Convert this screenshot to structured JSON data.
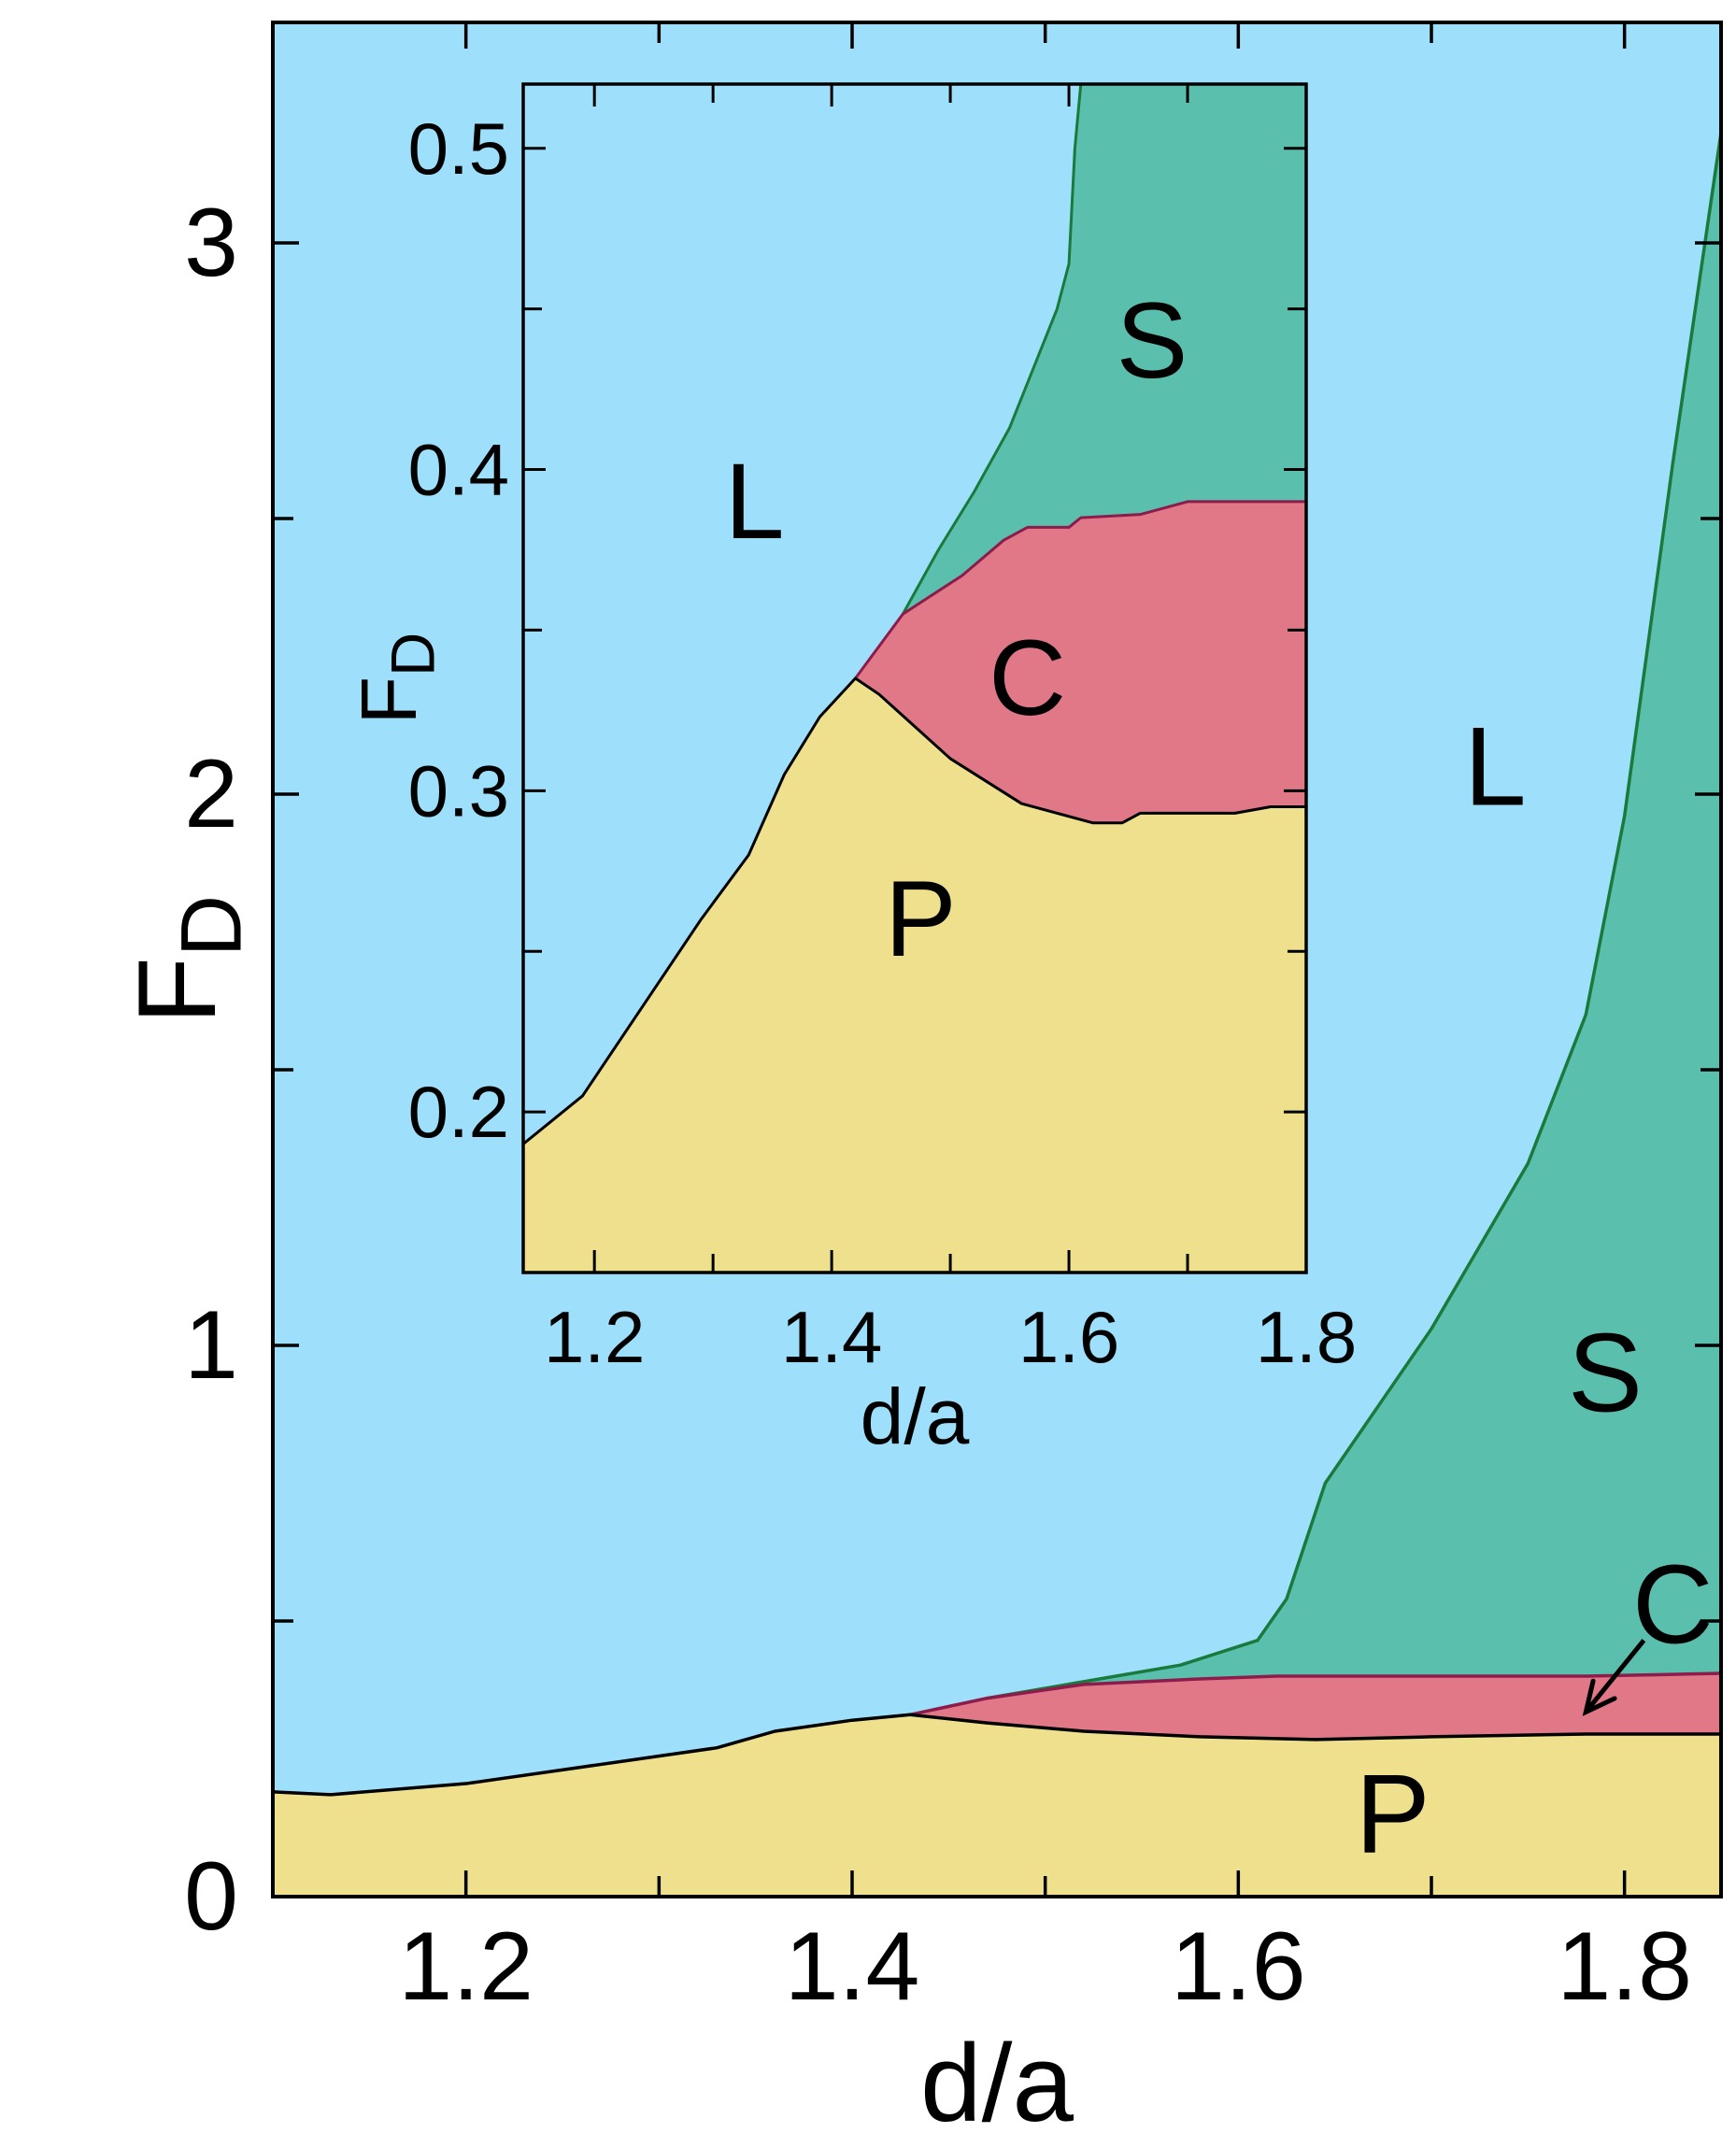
{
  "chart_data": [
    {
      "type": "area",
      "panel": "main",
      "xlabel": "d/a",
      "ylabel": "F",
      "ylabel_subscript": "D",
      "xlim": [
        1.1,
        1.85
      ],
      "ylim": [
        0,
        3.4
      ],
      "x_ticks": [
        1.2,
        1.4,
        1.6,
        1.8
      ],
      "x_tick_labels": [
        "1.2",
        "1.4",
        "1.6",
        "1.8"
      ],
      "x_minor_ticks": [
        1.1,
        1.3,
        1.5,
        1.7
      ],
      "y_ticks": [
        0,
        1,
        2,
        3
      ],
      "y_tick_labels": [
        "0",
        "1",
        "2",
        "3"
      ],
      "y_minor_ticks": [
        0.5,
        1.5,
        2.5
      ],
      "grid": false,
      "colors": {
        "L": "#9ee0fc",
        "S": "#5bbfae",
        "C": "#e07888",
        "P": "#eee08d"
      },
      "boundaries": {
        "P_upper": {
          "x": [
            1.1,
            1.13,
            1.2,
            1.26,
            1.33,
            1.36,
            1.4,
            1.43,
            1.47,
            1.52,
            1.58,
            1.64,
            1.7,
            1.78,
            1.85
          ],
          "y": [
            0.19,
            0.185,
            0.205,
            0.235,
            0.27,
            0.3,
            0.32,
            0.33,
            0.315,
            0.3,
            0.29,
            0.285,
            0.29,
            0.295,
            0.295
          ]
        },
        "C_upper": {
          "x": [
            1.43,
            1.47,
            1.52,
            1.58,
            1.62,
            1.7,
            1.78,
            1.85
          ],
          "y": [
            0.33,
            0.36,
            0.385,
            0.395,
            0.4,
            0.4,
            0.4,
            0.405
          ]
        },
        "S_upper": {
          "x": [
            1.47,
            1.52,
            1.57,
            1.61,
            1.625,
            1.645,
            1.7,
            1.75,
            1.78,
            1.8,
            1.825,
            1.85
          ],
          "y": [
            0.36,
            0.39,
            0.42,
            0.465,
            0.54,
            0.75,
            1.03,
            1.33,
            1.6,
            1.96,
            2.6,
            3.2
          ]
        }
      },
      "region_labels": [
        {
          "text": "L",
          "x": 1.733,
          "y": 2.05
        },
        {
          "text": "S",
          "x": 1.79,
          "y": 0.95
        },
        {
          "text": "C",
          "x": 1.825,
          "y": 0.53
        },
        {
          "text": "P",
          "x": 1.68,
          "y": 0.15
        }
      ],
      "annotations": [
        {
          "text": "C",
          "arrow_from": [
            1.81,
            0.465
          ],
          "arrow_to": [
            1.78,
            0.335
          ]
        }
      ]
    },
    {
      "type": "area",
      "panel": "inset",
      "xlabel": "d/a",
      "ylabel": "F",
      "ylabel_subscript": "D",
      "xlim": [
        1.14,
        1.8
      ],
      "ylim": [
        0.15,
        0.52
      ],
      "x_ticks": [
        1.2,
        1.4,
        1.6,
        1.8
      ],
      "x_tick_labels": [
        "1.2",
        "1.4",
        "1.6",
        "1.8"
      ],
      "x_minor_ticks": [
        1.3,
        1.5,
        1.7
      ],
      "y_ticks": [
        0.2,
        0.3,
        0.4,
        0.5
      ],
      "y_tick_labels": [
        "0.2",
        "0.3",
        "0.4",
        "0.5"
      ],
      "y_minor_ticks": [
        0.25,
        0.35,
        0.45
      ],
      "grid": false,
      "colors": {
        "L": "#9ee0fc",
        "S": "#5bbfae",
        "C": "#e07888",
        "P": "#eee08d"
      },
      "boundaries": {
        "P_upper": {
          "x": [
            1.14,
            1.19,
            1.29,
            1.33,
            1.36,
            1.39,
            1.42,
            1.44,
            1.5,
            1.56,
            1.62,
            1.645,
            1.66,
            1.7,
            1.74,
            1.77,
            1.8
          ],
          "y": [
            0.19,
            0.205,
            0.26,
            0.28,
            0.305,
            0.323,
            0.335,
            0.33,
            0.31,
            0.296,
            0.29,
            0.29,
            0.293,
            0.293,
            0.293,
            0.295,
            0.295
          ]
        },
        "C_upper": {
          "x": [
            1.42,
            1.46,
            1.51,
            1.545,
            1.565,
            1.6,
            1.61,
            1.66,
            1.7,
            1.8
          ],
          "y": [
            0.335,
            0.355,
            0.367,
            0.378,
            0.382,
            0.382,
            0.385,
            0.386,
            0.39,
            0.39
          ]
        },
        "S_upper": {
          "x": [
            1.46,
            1.49,
            1.52,
            1.55,
            1.59,
            1.6,
            1.605,
            1.61,
            1.8
          ],
          "y": [
            0.355,
            0.375,
            0.393,
            0.413,
            0.45,
            0.464,
            0.5,
            0.52,
            0.52
          ]
        }
      },
      "region_labels": [
        {
          "text": "L",
          "x": 1.335,
          "y": 0.39
        },
        {
          "text": "S",
          "x": 1.67,
          "y": 0.44
        },
        {
          "text": "C",
          "x": 1.565,
          "y": 0.335
        },
        {
          "text": "P",
          "x": 1.475,
          "y": 0.26
        }
      ]
    }
  ]
}
